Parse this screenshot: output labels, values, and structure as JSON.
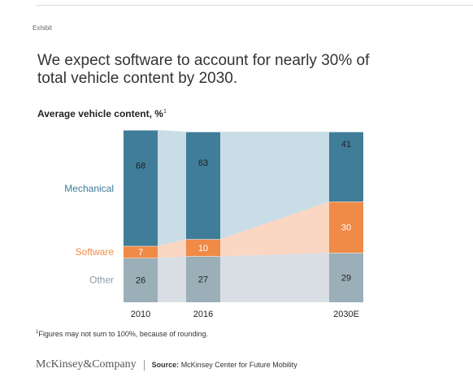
{
  "exhibit_label": "Exhibit",
  "headline": "We expect software to account for nearly 30% of total vehicle content by 2030.",
  "chart_data": {
    "type": "bar",
    "stacked": true,
    "title": "We expect software to account for nearly 30% of total vehicle content by 2030.",
    "subtitle": "Average vehicle content, %",
    "subtitle_footnote_mark": "1",
    "categories": [
      "2010",
      "2016",
      "2030E"
    ],
    "series": [
      {
        "name": "Other",
        "values": [
          26,
          27,
          29
        ],
        "color": "#9bafb9"
      },
      {
        "name": "Software",
        "values": [
          7,
          10,
          30
        ],
        "color": "#f08a47"
      },
      {
        "name": "Mechanical",
        "values": [
          68,
          63,
          41
        ],
        "color": "#3f7d98"
      }
    ],
    "label_colors": {
      "Mechanical": "#3f7d98",
      "Software": "#f08a47",
      "Other": "#8a9ca6"
    },
    "connector_colors": {
      "Mechanical": "#c9dde6",
      "Software": "#fbd6c3",
      "Other": "#d9dee4"
    },
    "ylim": [
      0,
      101
    ],
    "axis": "hidden",
    "legend": "left, inline labels"
  },
  "footnote": {
    "mark": "1",
    "text": "Figures may not sum to 100%, because of rounding."
  },
  "footer": {
    "brand": "McKinsey&Company",
    "source_label": "Source:",
    "source_text": "McKinsey Center for Future Mobility"
  }
}
